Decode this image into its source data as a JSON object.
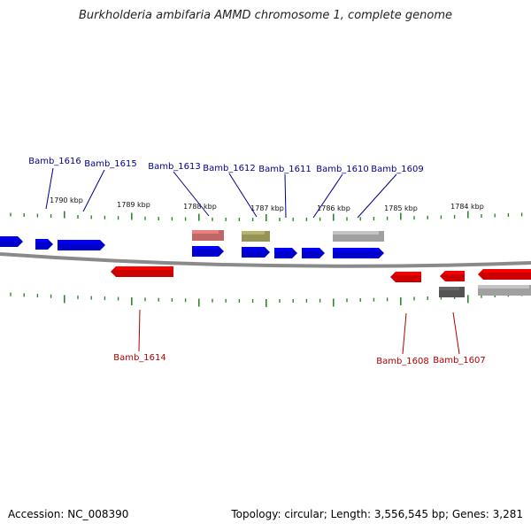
{
  "title": "Burkholderia ambifaria AMMD chromosome 1, complete genome",
  "accession_label": "Accession: NC_008390",
  "summary": "Topology: circular; Length: 3,556,545 bp; Genes: 3,281",
  "colors": {
    "backbone": "#8a8a8a",
    "tick": "#2a8a2a",
    "gene_forward": "#0000ff",
    "gene_reverse": "#ff0000",
    "label_forward": "#00008b",
    "label_reverse": "#b00000",
    "gene_pink": "#f08080",
    "gene_olive": "#bdb76b",
    "gene_lightgray": "#c8c8c8",
    "gene_darkgray": "#696969"
  },
  "scale_labels": [
    "1790 kbp",
    "1789 kbp",
    "1788 kbp",
    "1787 kbp",
    "1786 kbp",
    "1785 kbp",
    "1784 kbp"
  ],
  "gene_labels": [
    {
      "text": "Bamb_1616",
      "strand": "forward"
    },
    {
      "text": "Bamb_1615",
      "strand": "forward"
    },
    {
      "text": "Bamb_1613",
      "strand": "forward"
    },
    {
      "text": "Bamb_1612",
      "strand": "forward"
    },
    {
      "text": "Bamb_1611",
      "strand": "forward"
    },
    {
      "text": "Bamb_1610",
      "strand": "forward"
    },
    {
      "text": "Bamb_1609",
      "strand": "forward"
    },
    {
      "text": "Bamb_1614",
      "strand": "reverse"
    },
    {
      "text": "Bamb_1608",
      "strand": "reverse"
    },
    {
      "text": "Bamb_1607",
      "strand": "reverse"
    }
  ]
}
